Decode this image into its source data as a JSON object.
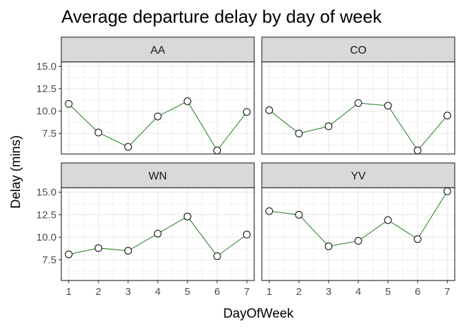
{
  "chart_data": {
    "type": "line",
    "title": "Average departure delay by day of week",
    "xlabel": "DayOfWeek",
    "ylabel": "Delay (mins)",
    "x": [
      1,
      2,
      3,
      4,
      5,
      6,
      7
    ],
    "xticks": [
      "1",
      "2",
      "3",
      "4",
      "5",
      "6",
      "7"
    ],
    "xlim": [
      0.75,
      7.25
    ],
    "yticks": [
      "7.5",
      "10.0",
      "12.5",
      "15.0"
    ],
    "ytick_values": [
      7.5,
      10.0,
      12.5,
      15.0
    ],
    "ylim": [
      5.2,
      15.5
    ],
    "grid": true,
    "facets": [
      "AA",
      "CO",
      "WN",
      "YV"
    ],
    "series": [
      {
        "name": "AA",
        "values": [
          10.8,
          7.6,
          6.0,
          9.4,
          11.1,
          5.6,
          9.9
        ]
      },
      {
        "name": "CO",
        "values": [
          10.1,
          7.5,
          8.3,
          10.9,
          10.6,
          5.6,
          9.5
        ]
      },
      {
        "name": "WN",
        "values": [
          8.1,
          8.8,
          8.5,
          10.4,
          12.3,
          7.9,
          10.3
        ]
      },
      {
        "name": "YV",
        "values": [
          12.9,
          12.5,
          9.0,
          9.6,
          11.9,
          9.8,
          15.1
        ]
      }
    ],
    "line_color": "#1a7a1a",
    "point_fill": "#ffffff",
    "point_stroke": "#000000",
    "panel_border": "#333333",
    "strip_fill": "#d9d9d9",
    "grid_color": "#ebebeb"
  }
}
